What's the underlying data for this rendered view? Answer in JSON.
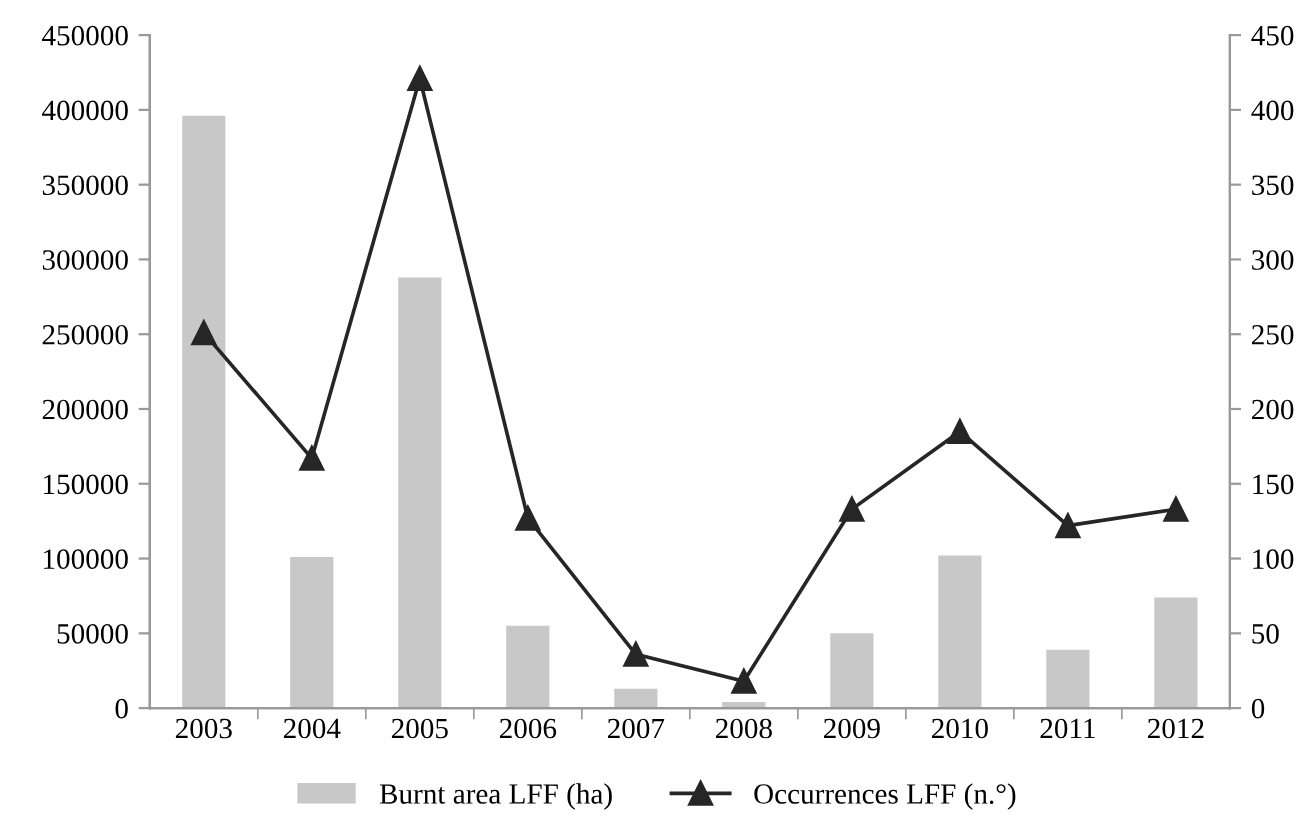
{
  "chart_data": {
    "type": "bar",
    "categories": [
      "2003",
      "2004",
      "2005",
      "2006",
      "2007",
      "2008",
      "2009",
      "2010",
      "2011",
      "2012"
    ],
    "series": [
      {
        "name": "Burnt area LFF (ha)",
        "color": "#c8c8c8",
        "values": [
          396000,
          101000,
          288000,
          55000,
          13000,
          4000,
          50000,
          102000,
          39000,
          74000
        ]
      },
      {
        "name": "Occurrences LFF (n.°)",
        "type": "line",
        "axis": "y2",
        "color": "#262626",
        "marker": "triangle",
        "line_style": "solid",
        "values": [
          251,
          167,
          421,
          127,
          36,
          18,
          133,
          185,
          122,
          133
        ]
      }
    ],
    "ylim": [
      0,
      450000
    ],
    "yticks": [
      0,
      50000,
      100000,
      150000,
      200000,
      250000,
      300000,
      350000,
      400000,
      450000
    ],
    "y2lim": [
      0,
      450
    ],
    "y2ticks": [
      0,
      50,
      100,
      150,
      200,
      250,
      300,
      350,
      400,
      450
    ],
    "grid": false,
    "legend": "bottom"
  }
}
